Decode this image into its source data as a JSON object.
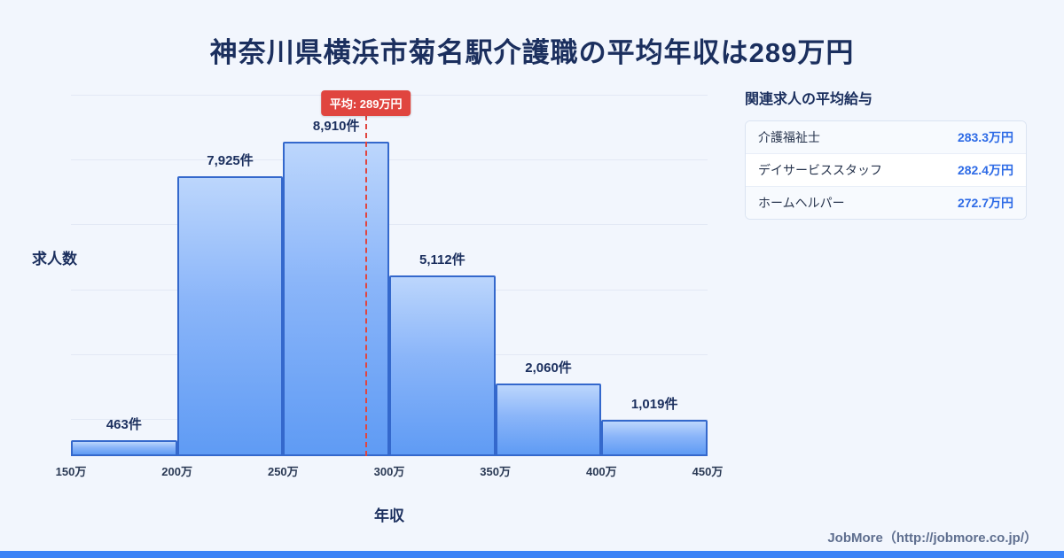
{
  "title": "神奈川県横浜市菊名駅介護職の平均年収は289万円",
  "chart_data": {
    "type": "bar",
    "title": "神奈川県横浜市菊名駅介護職の平均年収は289万円",
    "xlabel": "年収",
    "ylabel": "求人数",
    "x_range_man_yen": [
      150,
      450
    ],
    "bin_width_man_yen": 50,
    "categories": [
      "150万-200万",
      "200万-250万",
      "250万-300万",
      "300万-350万",
      "350万-400万",
      "400万-450万"
    ],
    "values": [
      463,
      7925,
      8910,
      5112,
      2060,
      1019
    ],
    "value_labels": [
      "463件",
      "7,925件",
      "8,910件",
      "5,112件",
      "2,060件",
      "1,019件"
    ],
    "x_tick_labels": [
      "150万",
      "200万",
      "250万",
      "300万",
      "350万",
      "400万",
      "450万"
    ],
    "average": {
      "value_man_yen": 289,
      "label": "平均: 289万円"
    },
    "grid": "horizontal",
    "legend": "none",
    "bar_color": "#6fa3f6",
    "bar_border_color": "#3468cc",
    "average_line_color": "#e0453f"
  },
  "sidebar": {
    "title": "関連求人の平均給与",
    "rows": [
      {
        "label": "介護福祉士",
        "value": "283.3万円"
      },
      {
        "label": "デイサービススタッフ",
        "value": "282.4万円"
      },
      {
        "label": "ホームヘルパー",
        "value": "272.7万円"
      }
    ]
  },
  "footer": {
    "credit": "JobMore（http://jobmore.co.jp/）"
  },
  "colors": {
    "background": "#f2f6fd",
    "title_text": "#1b2f5e",
    "accent_blue": "#3b82f6",
    "value_blue": "#2e6be6",
    "average_red": "#e0453f"
  }
}
